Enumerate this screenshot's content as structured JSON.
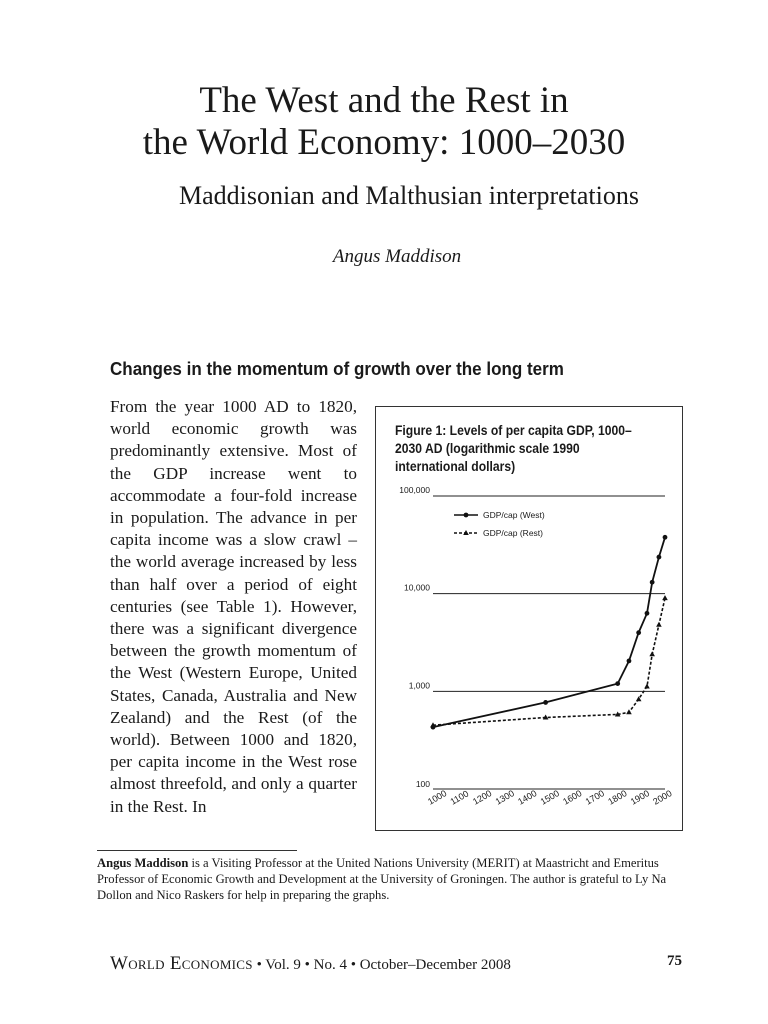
{
  "paper": {
    "title_line1": "The West and the Rest in",
    "title_line2": "the World Economy: 1000–2030",
    "subtitle": "Maddisonian and Malthusian interpretations",
    "author": "Angus Maddison",
    "section_heading": "Changes in the momentum of growth over the long term",
    "body_text": "From the year 1000 AD to 1820, world economic growth was predominantly extensive. Most of the GDP increase went to accommodate a four-fold increase in population. The advance in per capita income was a slow crawl – the world average increased by less than half over a period of eight centuries (see Table 1). However, there was a significant divergence between the growth momentum of the West (Western Europe, United States, Canada, Australia and New Zealand) and the Rest (of the world). Between 1000 and 1820, per capita income in the West rose almost threefold, and only a quarter in the Rest. In",
    "footnote_name": "Angus Maddison",
    "footnote_text": " is a Visiting Professor at the United Nations University (MERIT) at Maastricht and Emeritus Professor of Economic Growth and Development at the University of Groningen. The author is grateful to Ly Na Dollon and Nico Raskers for help in preparing the graphs.",
    "journal_name": "World Economics",
    "journal_details": " • Vol. 9 • No. 4 • October–December 2008",
    "page_number": "75"
  },
  "chart_data": {
    "type": "line",
    "title": "Figure 1: Levels of per capita GDP, 1000–2030 AD (logarithmic scale 1990 international dollars)",
    "y_scale": "log",
    "ylim": [
      100,
      100000
    ],
    "y_ticks": [
      "100",
      "1,000",
      "10,000",
      "100,000"
    ],
    "y_tick_values": [
      100,
      1000,
      10000,
      100000
    ],
    "xlim": [
      1000,
      2030
    ],
    "x_ticks": [
      "1000",
      "1100",
      "1200",
      "1300",
      "1400",
      "1500",
      "1600",
      "1700",
      "1800",
      "1900",
      "2000"
    ],
    "x_tick_values": [
      1000,
      1100,
      1200,
      1300,
      1400,
      1500,
      1600,
      1700,
      1800,
      1900,
      2000
    ],
    "grid": "horizontal",
    "legend_position": "top-left",
    "series": [
      {
        "name": "GDP/cap (West)",
        "style": "solid",
        "marker": "circle",
        "x": [
          1000,
          1500,
          1820,
          1870,
          1913,
          1950,
          1973,
          2003,
          2030
        ],
        "y": [
          430,
          770,
          1200,
          2050,
          3990,
          6300,
          13100,
          23700,
          37800
        ]
      },
      {
        "name": "GDP/cap (Rest)",
        "style": "dashed",
        "marker": "triangle",
        "x": [
          1000,
          1500,
          1820,
          1870,
          1913,
          1950,
          1973,
          2003,
          2030
        ],
        "y": [
          450,
          540,
          580,
          610,
          830,
          1120,
          2400,
          4800,
          9000
        ]
      }
    ]
  }
}
